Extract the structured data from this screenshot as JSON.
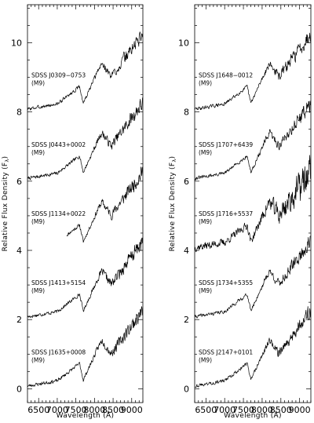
{
  "chart_data": [
    {
      "type": "line",
      "panel": "left",
      "xlabel": "Wavelength (Å)",
      "ylabel": "Relative Flux Density (F",
      "ylabel_sub": "λ",
      "ylabel_close": ")",
      "xlim": [
        6200,
        9300
      ],
      "ylim": [
        -0.4,
        11.1
      ],
      "xticks": [
        6500,
        7000,
        7500,
        8000,
        8500,
        9000
      ],
      "yticks": [
        0,
        2,
        4,
        6,
        8,
        10
      ],
      "series": [
        {
          "name": "SDSS J0309−0753",
          "type_label": "(M9)",
          "offset": 8,
          "start": 6200,
          "seed": 3
        },
        {
          "name": "SDSS J0443+0002",
          "type_label": "(M9)",
          "offset": 6,
          "start": 6200,
          "seed": 7
        },
        {
          "name": "SDSS J1134+0022",
          "type_label": "(M9)",
          "offset": 4,
          "start": 7250,
          "seed": 11
        },
        {
          "name": "SDSS J1413+5154",
          "type_label": "(M9)",
          "offset": 2,
          "start": 6200,
          "seed": 17
        },
        {
          "name": "SDSS J1635+0008",
          "type_label": "(M9)",
          "offset": 0,
          "start": 6200,
          "seed": 23
        }
      ]
    },
    {
      "type": "line",
      "panel": "right",
      "xlabel": "Wavelength (Å)",
      "ylabel": "Relative Flux Density (F",
      "ylabel_sub": "λ",
      "ylabel_close": ")",
      "xlim": [
        6200,
        9300
      ],
      "ylim": [
        -0.4,
        11.1
      ],
      "xticks": [
        6500,
        7000,
        7500,
        8000,
        8500,
        9000
      ],
      "yticks": [
        0,
        2,
        4,
        6,
        8,
        10
      ],
      "series": [
        {
          "name": "SDSS J1648−0012",
          "type_label": "(M9)",
          "offset": 8,
          "start": 6200,
          "seed": 29
        },
        {
          "name": "SDSS J1707+6439",
          "type_label": "(M9)",
          "offset": 6,
          "start": 6200,
          "seed": 31
        },
        {
          "name": "SDSS J1716+5537",
          "type_label": "(M9)",
          "offset": 4,
          "start": 6200,
          "seed": 37,
          "noise": 2.2
        },
        {
          "name": "SDSS J1734+5355",
          "type_label": "(M9)",
          "offset": 2,
          "start": 6200,
          "seed": 41
        },
        {
          "name": "SDSS J2147+0101",
          "type_label": "(M9)",
          "offset": 0,
          "start": 6200,
          "seed": 43
        }
      ]
    }
  ]
}
